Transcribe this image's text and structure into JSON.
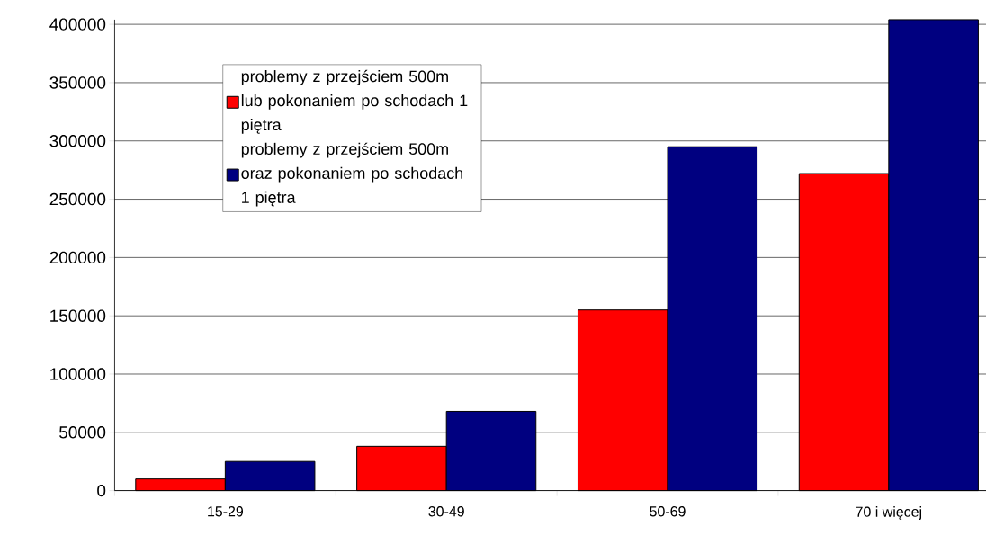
{
  "chart_data": {
    "type": "bar",
    "categories": [
      "15-29",
      "30-49",
      "50-69",
      "70 i więcej"
    ],
    "series": [
      {
        "name": "problemy z przejściem 500m lub pokonaniem po schodach 1 piętra",
        "color": "#ff0000",
        "values": [
          10000,
          38000,
          155000,
          272000
        ]
      },
      {
        "name": "problemy z przejściem 500m oraz pokonaniem po schodach 1 piętra",
        "color": "#000080",
        "values": [
          25000,
          68000,
          295000,
          404000
        ]
      }
    ],
    "ylim": [
      0,
      404000
    ],
    "yticks": [
      0,
      50000,
      100000,
      150000,
      200000,
      250000,
      300000,
      350000,
      400000
    ],
    "grid": "y",
    "legend": "top left"
  }
}
